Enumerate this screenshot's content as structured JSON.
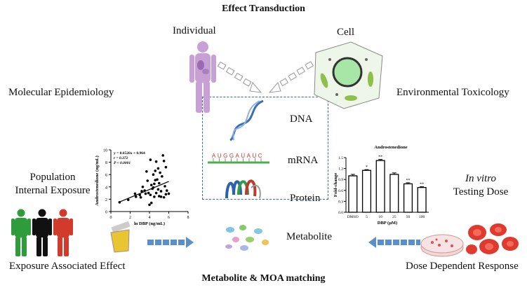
{
  "title": "Effect Transduction",
  "footer": "Metabolite & MOA matching",
  "labels": {
    "individual": "Individual",
    "cell": "Cell",
    "mol_epi": "Molecular Epidemiology",
    "env_tox": "Environmental Toxicology",
    "pop1": "Population",
    "pop2": "Internal Exposure",
    "invitro1": "In vitro",
    "invitro2": "Testing Dose",
    "dna": "DNA",
    "mrna": "mRNA",
    "protein": "Protein",
    "metabolite": "Metabolite",
    "exposure_effect": "Exposure Associated Effect",
    "dose_response": "Dose Dependent Response",
    "mrna_seq": "AUGGAUAUC"
  },
  "colors": {
    "box": "#2f6f9f",
    "arrow": "#5b8fc9",
    "human": "#c9a0d6"
  },
  "chart_data": [
    {
      "type": "scatter",
      "title": "",
      "xlabel": "ln DBP (ng/mL)",
      "ylabel": "Androstenedione (ng/mL)",
      "xlim": [
        0,
        8
      ],
      "ylim": [
        0,
        10
      ],
      "xticks": [
        "0",
        "2",
        "4",
        "6",
        "8"
      ],
      "yticks": [
        "0",
        "2",
        "4",
        "6",
        "8",
        "10"
      ],
      "annotations": [
        "y = 0.6526x + 0.964",
        "r = 0.372",
        "P < 0.0001"
      ],
      "fit": {
        "slope": 0.6526,
        "intercept": 0.964,
        "x_range": [
          0.9,
          6
        ]
      },
      "points": [
        [
          0.9,
          1.5
        ],
        [
          1.8,
          1.9
        ],
        [
          2.5,
          2.9
        ],
        [
          2.6,
          2.4
        ],
        [
          3.1,
          2.3
        ],
        [
          3.2,
          3.3
        ],
        [
          3.3,
          4
        ],
        [
          3.5,
          3.4
        ],
        [
          3.7,
          6.5
        ],
        [
          3.8,
          5
        ],
        [
          3.9,
          3
        ],
        [
          4,
          1.1
        ],
        [
          4.1,
          2.7
        ],
        [
          4.1,
          8.4
        ],
        [
          4.2,
          4.3
        ],
        [
          4.2,
          1.4
        ],
        [
          4.3,
          3.7
        ],
        [
          4.4,
          6
        ],
        [
          4.5,
          2.4
        ],
        [
          4.5,
          4.5
        ],
        [
          4.6,
          6.6
        ],
        [
          4.7,
          8.1
        ],
        [
          4.7,
          3
        ],
        [
          4.8,
          5.2
        ],
        [
          4.9,
          7
        ],
        [
          5,
          2.5
        ],
        [
          5,
          4.6
        ],
        [
          5.1,
          6.3
        ],
        [
          5.2,
          3.3
        ],
        [
          5.3,
          5.7
        ],
        [
          5.4,
          9.1
        ],
        [
          5.5,
          8.2
        ],
        [
          5.5,
          2.3
        ],
        [
          5.6,
          4.1
        ],
        [
          5.7,
          7.2
        ],
        [
          5.8,
          3.4
        ],
        [
          6,
          2.9
        ],
        [
          3.6,
          2.9
        ],
        [
          4.4,
          3.9
        ],
        [
          5.2,
          2.4
        ],
        [
          3,
          2.7
        ],
        [
          4.6,
          5.1
        ],
        [
          4.9,
          3.6
        ],
        [
          5.7,
          2.8
        ]
      ]
    },
    {
      "type": "bar",
      "title": "Androstenedione",
      "xlabel": "DBP (μM)",
      "ylabel": "Fold-change",
      "categories": [
        "DMSO",
        "5",
        "10",
        "25",
        "50",
        "100"
      ],
      "values": [
        1.0,
        1.15,
        1.42,
        1.04,
        0.78,
        0.68
      ],
      "errors": [
        0.04,
        0.02,
        0.03,
        0.04,
        0.03,
        0.02
      ],
      "significance": [
        "",
        "*",
        "**",
        "",
        "**",
        "**"
      ],
      "ylim": [
        0,
        1.5
      ],
      "yticks": [
        "0.0",
        "0.3",
        "0.6",
        "0.9",
        "1.2",
        "1.5"
      ]
    }
  ]
}
